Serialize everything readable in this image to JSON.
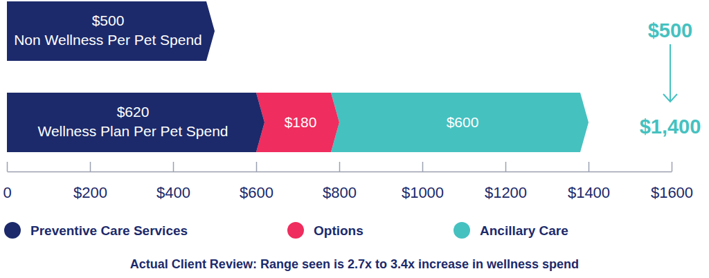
{
  "chart_data": {
    "type": "bar",
    "orientation": "horizontal",
    "stacked": true,
    "data_labels": true,
    "tick_labels": "x",
    "grid": false,
    "legend": "bottom",
    "categories": [
      "Non Wellness Per Pet Spend",
      "Wellness Plan Per Pet Spend"
    ],
    "series": [
      {
        "name": "Preventive Care Services",
        "color": "#1c2a6b",
        "values": [
          500,
          620
        ],
        "value_labels": [
          "$500",
          "$620"
        ]
      },
      {
        "name": "Options",
        "color": "#ef2d5e",
        "values": [
          null,
          180
        ],
        "value_labels": [
          null,
          "$180"
        ]
      },
      {
        "name": "Ancillary Care",
        "color": "#45c1c0",
        "values": [
          null,
          600
        ],
        "value_labels": [
          null,
          "$600"
        ]
      }
    ],
    "xlim": [
      0,
      1600
    ],
    "xticks": [
      0,
      {
        "value": 200,
        "label": "$200"
      },
      {
        "value": 400,
        "label": "$400"
      },
      {
        "value": 600,
        "label": "$600"
      },
      {
        "value": 800,
        "label": "$800"
      },
      {
        "value": 1000,
        "label": "$1000"
      },
      {
        "value": 1200,
        "label": "$1200"
      },
      {
        "value": 1400,
        "label": "$1400"
      },
      {
        "value": 1600,
        "label": "$1600"
      }
    ],
    "annotations": [
      "$500",
      "$1,400"
    ],
    "caption": "Actual Client Review: Range seen is 2.7x to 3.4x increase in wellness spend"
  }
}
